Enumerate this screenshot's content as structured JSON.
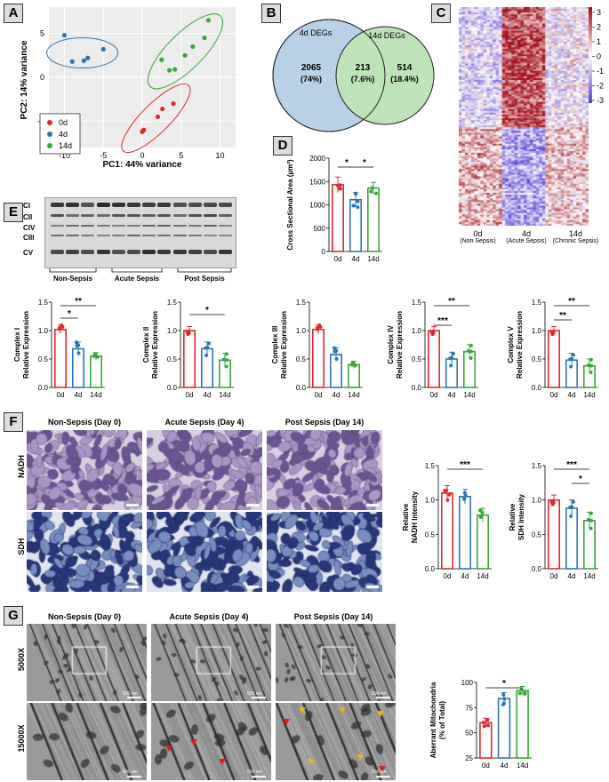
{
  "panels": {
    "A": "A",
    "B": "B",
    "C": "C",
    "D": "D",
    "E": "E",
    "F": "F",
    "G": "G"
  },
  "colors": {
    "d0": "#e0282e",
    "d4": "#2e74b5",
    "d14": "#3aa63a"
  },
  "panelA": {
    "chart_data": {
      "type": "scatter",
      "xlabel": "PC1: 44% variance",
      "ylabel": "PC2: 14% variance",
      "xticks": [
        "-10",
        "-5",
        "0",
        "5",
        "10"
      ],
      "yticks": [
        "5",
        "0",
        "-5"
      ],
      "legend": [
        "0d",
        "4d",
        "14d"
      ],
      "series": [
        {
          "name": "0d",
          "x": [
            0,
            0.2,
            2,
            2.6,
            4
          ],
          "y": [
            -6.2,
            -6.0,
            -4.5,
            -3.6,
            -3.0
          ]
        },
        {
          "name": "4d",
          "x": [
            -10,
            -9,
            -7.5,
            -7,
            -5
          ],
          "y": [
            4.8,
            1.8,
            1.9,
            2.2,
            3.2
          ]
        },
        {
          "name": "14d",
          "x": [
            2.5,
            3.5,
            4.2,
            5.5,
            6.5,
            8,
            8.5
          ],
          "y": [
            2.0,
            0.8,
            0.9,
            2.5,
            3.5,
            4.5,
            6.5
          ]
        }
      ]
    }
  },
  "panelB": {
    "left_title": "4d DEGs",
    "right_title": "14d DEGs",
    "left_n": "2065",
    "left_p": "(74%)",
    "mid_n": "213",
    "mid_p": "(7.6%)",
    "right_n": "514",
    "right_p": "(18.4%)"
  },
  "panelC": {
    "legend_ticks": [
      "3",
      "2",
      "1",
      "0",
      "-1",
      "-2",
      "-3"
    ],
    "groups": [
      {
        "day": "0d",
        "label": "(Non Sepsis)"
      },
      {
        "day": "4d",
        "label": "(Acute Sepsis)"
      },
      {
        "day": "14d",
        "label": "(Chronic Sepsis)"
      }
    ]
  },
  "panelD": {
    "chart_data": {
      "type": "bar",
      "categories": [
        "0d",
        "4d",
        "14d"
      ],
      "values": [
        1430,
        1110,
        1360
      ],
      "ylabel": "Cross Sectional Area (µm²)",
      "yticks": [
        "0",
        "500",
        "1000",
        "1500",
        "2000"
      ],
      "ylim": [
        0,
        2000
      ],
      "sig": [
        "*",
        "*"
      ]
    }
  },
  "panelE": {
    "bands": [
      "CI",
      "CII",
      "CIV",
      "CIII",
      "CV"
    ],
    "groups": [
      "Non-Sepsis",
      "Acute Sepsis",
      "Post Sepsis"
    ],
    "charts": [
      {
        "type": "bar",
        "ylabel": "Complex I",
        "ylabel2": "Relative Expression",
        "categories": [
          "0d",
          "4d",
          "14d"
        ],
        "values": [
          1.02,
          0.68,
          0.55
        ],
        "yticks": [
          "0.0",
          "0.5",
          "1.0",
          "1.5"
        ],
        "ylim": [
          0,
          1.5
        ],
        "sig": [
          "**",
          "*"
        ]
      },
      {
        "type": "bar",
        "ylabel": "Complex II",
        "ylabel2": "Relative Expression",
        "categories": [
          "0d",
          "4d",
          "14d"
        ],
        "values": [
          1.0,
          0.68,
          0.48
        ],
        "yticks": [
          "0.0",
          "0.5",
          "1.0",
          "1.5"
        ],
        "ylim": [
          0,
          1.5
        ],
        "sig": [
          "*"
        ]
      },
      {
        "type": "bar",
        "ylabel": "Complex III",
        "ylabel2": "Relative Expression",
        "categories": [
          "0d",
          "4d",
          "14d"
        ],
        "values": [
          1.02,
          0.58,
          0.4
        ],
        "yticks": [
          "0.0",
          "0.5",
          "1.0",
          "1.5"
        ],
        "ylim": [
          0,
          1.5
        ],
        "sig": []
      },
      {
        "type": "bar",
        "ylabel": "Complex IV",
        "ylabel2": "Relative Expression",
        "categories": [
          "0d",
          "4d",
          "14d"
        ],
        "values": [
          1.0,
          0.5,
          0.63
        ],
        "yticks": [
          "0.0",
          "0.5",
          "1.0",
          "1.5"
        ],
        "ylim": [
          0,
          1.5
        ],
        "sig": [
          "**",
          "***"
        ]
      },
      {
        "type": "bar",
        "ylabel": "Complex V",
        "ylabel2": "Relative Expression",
        "categories": [
          "0d",
          "4d",
          "14d"
        ],
        "values": [
          1.0,
          0.48,
          0.38
        ],
        "yticks": [
          "0.0",
          "0.5",
          "1.0",
          "1.5"
        ],
        "ylim": [
          0,
          1.5
        ],
        "sig": [
          "**",
          "**"
        ]
      }
    ]
  },
  "panelF": {
    "cols": [
      "Non-Sepsis (Day 0)",
      "Acute Sepsis (Day 4)",
      "Post Sepsis (Day 14)"
    ],
    "rows": [
      "NADH",
      "SDH"
    ],
    "charts": [
      {
        "type": "bar",
        "ylabel": "Relative",
        "ylabel2": "NADH Intensity",
        "categories": [
          "0d",
          "4d",
          "14d"
        ],
        "values": [
          1.1,
          1.05,
          0.78
        ],
        "yticks": [
          "0.0",
          "0.5",
          "1.0",
          "1.5"
        ],
        "ylim": [
          0,
          1.5
        ],
        "sig": [
          "***"
        ]
      },
      {
        "type": "bar",
        "ylabel": "Relative",
        "ylabel2": "SDH Intensity",
        "categories": [
          "0d",
          "4d",
          "14d"
        ],
        "values": [
          1.0,
          0.88,
          0.7
        ],
        "yticks": [
          "0.0",
          "0.5",
          "1.0",
          "1.5"
        ],
        "ylim": [
          0,
          1.5
        ],
        "sig": [
          "***",
          "*"
        ]
      }
    ]
  },
  "panelG": {
    "cols": [
      "Non-Sepsis (Day 0)",
      "Acute Sepsis (Day 4)",
      "Post Sepsis (Day 14)"
    ],
    "rows": [
      "5000X",
      "15000X"
    ],
    "scale": "500 nm",
    "chart": {
      "type": "bar",
      "ylabel": "Aberrant Mitochondria",
      "ylabel2": "(% of Total)",
      "categories": [
        "0d",
        "4d",
        "14d"
      ],
      "values": [
        60,
        84,
        92
      ],
      "yticks": [
        "25",
        "50",
        "75",
        "100"
      ],
      "ylim": [
        25,
        100
      ],
      "sig": [
        "*"
      ]
    }
  }
}
